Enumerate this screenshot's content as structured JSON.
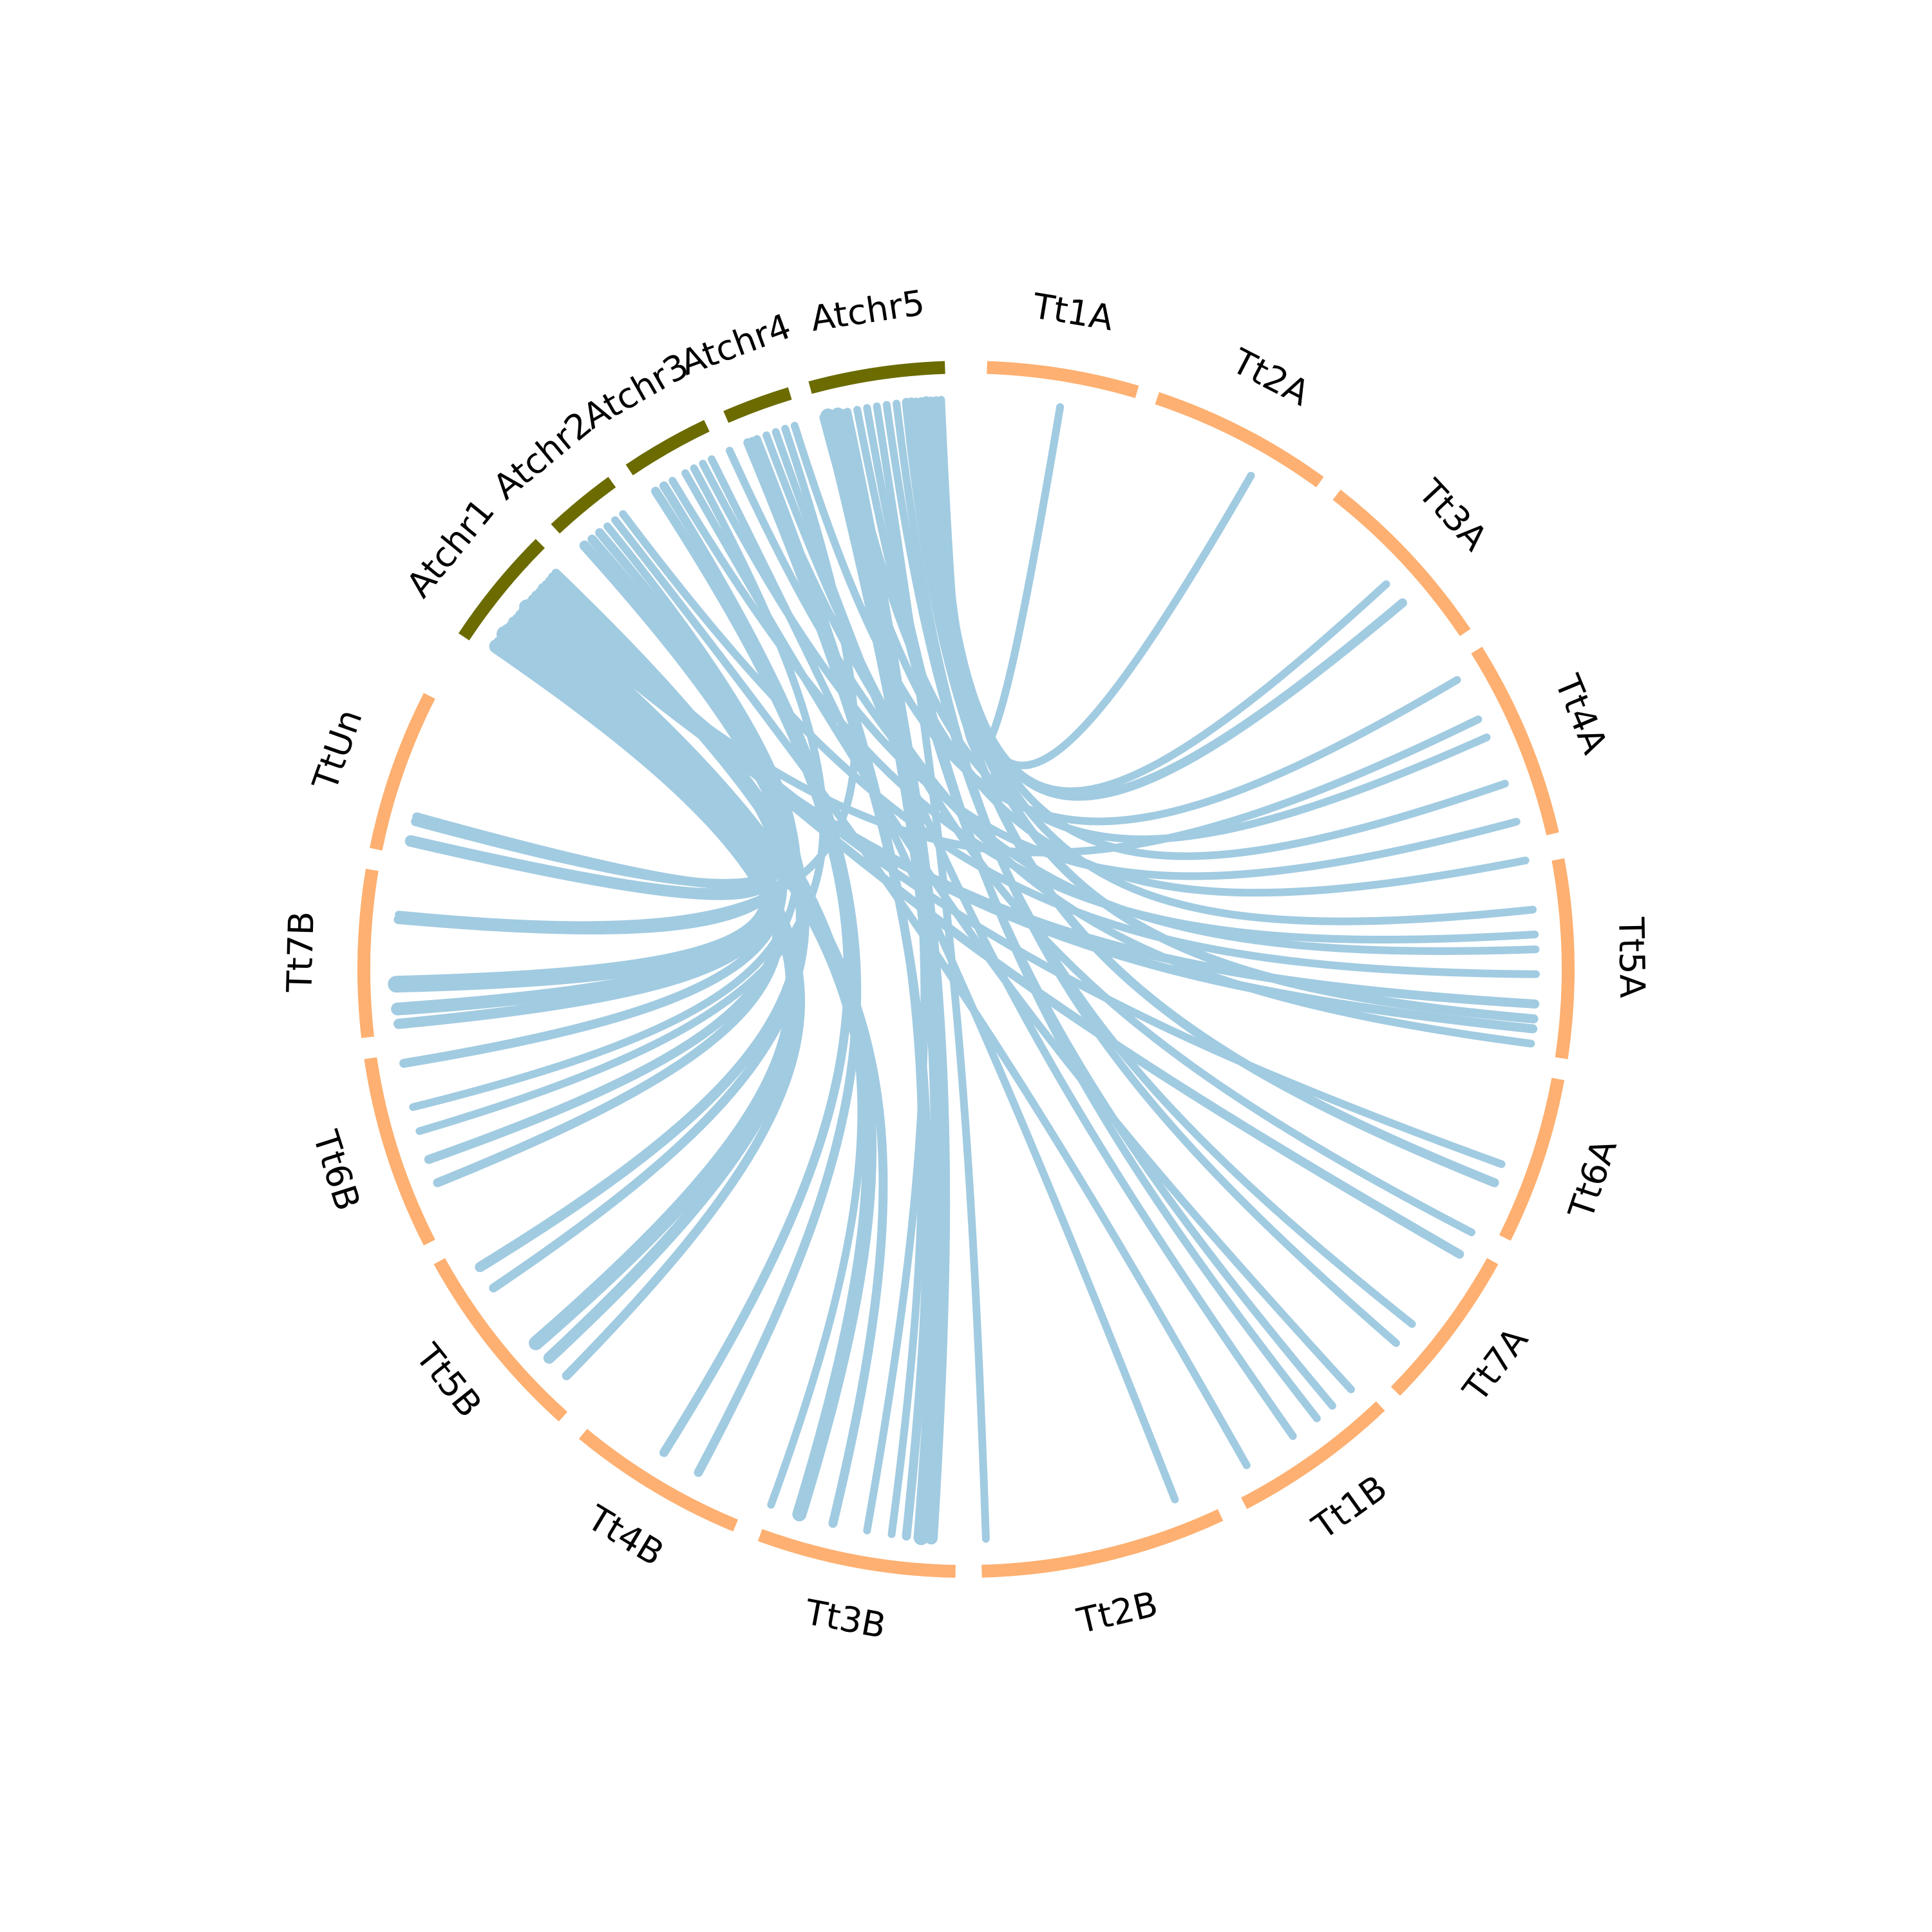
{
  "colors": {
    "background": "#ffffff",
    "arabidopsis_chromosome": "#6b6b00",
    "wheat_chromosome": "#fdb071",
    "link": "#a1cbe1",
    "label": "#000000"
  },
  "chromosomes": [
    {
      "id": "Atchr1",
      "label": "Atchr1",
      "group": "arabidopsis",
      "start_deg": 303.5,
      "end_deg": 315.0
    },
    {
      "id": "Atchr2",
      "label": "Atchr2",
      "group": "arabidopsis",
      "start_deg": 317.0,
      "end_deg": 324.0
    },
    {
      "id": "Atchr3",
      "label": "Atchr3",
      "group": "arabidopsis",
      "start_deg": 326.0,
      "end_deg": 334.5
    },
    {
      "id": "Atchr4",
      "label": "Atchr4",
      "group": "arabidopsis",
      "start_deg": 336.5,
      "end_deg": 343.0
    },
    {
      "id": "Atchr5",
      "label": "Atchr5",
      "group": "arabidopsis",
      "start_deg": 345.0,
      "end_deg": 358.0
    },
    {
      "id": "Tt1A",
      "label": "Tt1A",
      "group": "wheat",
      "start_deg": 2.0,
      "end_deg": 16.5
    },
    {
      "id": "Tt2A",
      "label": "Tt2A",
      "group": "wheat",
      "start_deg": 18.5,
      "end_deg": 36.0
    },
    {
      "id": "Tt3A",
      "label": "Tt3A",
      "group": "wheat",
      "start_deg": 38.0,
      "end_deg": 56.0
    },
    {
      "id": "Tt4A",
      "label": "Tt4A",
      "group": "wheat",
      "start_deg": 58.0,
      "end_deg": 77.0
    },
    {
      "id": "Tt5A",
      "label": "Tt5A",
      "group": "wheat",
      "start_deg": 79.5,
      "end_deg": 98.5
    },
    {
      "id": "Tt6A",
      "label": "Tt6A",
      "group": "wheat",
      "start_deg": 100.5,
      "end_deg": 116.5
    },
    {
      "id": "Tt7A",
      "label": "Tt7A",
      "group": "wheat",
      "start_deg": 119.0,
      "end_deg": 134.5
    },
    {
      "id": "Tt1B",
      "label": "Tt1B",
      "group": "wheat",
      "start_deg": 136.5,
      "end_deg": 152.5
    },
    {
      "id": "Tt2B",
      "label": "Tt2B",
      "group": "wheat",
      "start_deg": 155.0,
      "end_deg": 178.5
    },
    {
      "id": "Tt3B",
      "label": "Tt3B",
      "group": "wheat",
      "start_deg": 181.0,
      "end_deg": 200.0
    },
    {
      "id": "Tt4B",
      "label": "Tt4B",
      "group": "wheat",
      "start_deg": 202.5,
      "end_deg": 219.5
    },
    {
      "id": "Tt5B",
      "label": "Tt5B",
      "group": "wheat",
      "start_deg": 222.0,
      "end_deg": 241.0
    },
    {
      "id": "Tt6B",
      "label": "Tt6B",
      "group": "wheat",
      "start_deg": 243.0,
      "end_deg": 261.5
    },
    {
      "id": "Tt7B",
      "label": "Tt7B",
      "group": "wheat",
      "start_deg": 263.5,
      "end_deg": 279.5
    },
    {
      "id": "TtUn",
      "label": "TtUn",
      "group": "wheat",
      "start_deg": 281.5,
      "end_deg": 297.0
    }
  ],
  "links": [
    {
      "from": 304.5,
      "to": 229.0,
      "width": 22
    },
    {
      "from": 305.0,
      "to": 227.0,
      "width": 18
    },
    {
      "from": 305.5,
      "to": 224.5,
      "width": 14
    },
    {
      "from": 306.0,
      "to": 268.5,
      "width": 26
    },
    {
      "from": 306.5,
      "to": 266.0,
      "width": 20
    },
    {
      "from": 307.0,
      "to": 264.5,
      "width": 16
    },
    {
      "from": 307.5,
      "to": 283.0,
      "width": 18
    },
    {
      "from": 308.0,
      "to": 285.5,
      "width": 14
    },
    {
      "from": 308.5,
      "to": 250.5,
      "width": 14
    },
    {
      "from": 309.0,
      "to": 248.0,
      "width": 14
    },
    {
      "from": 309.5,
      "to": 197.0,
      "width": 22
    },
    {
      "from": 310.0,
      "to": 193.5,
      "width": 14
    },
    {
      "from": 310.5,
      "to": 93.5,
      "width": 14
    },
    {
      "from": 311.0,
      "to": 96.0,
      "width": 14
    },
    {
      "from": 311.5,
      "to": 64.0,
      "width": 12
    },
    {
      "from": 312.0,
      "to": 120.0,
      "width": 14
    },
    {
      "from": 312.5,
      "to": 110.0,
      "width": 12
    },
    {
      "from": 313.0,
      "to": 200.0,
      "width": 12
    },
    {
      "from": 313.5,
      "to": 285.0,
      "width": 14
    },
    {
      "from": 314.0,
      "to": 260.5,
      "width": 14
    },
    {
      "from": 318.0,
      "to": 238.5,
      "width": 16
    },
    {
      "from": 319.0,
      "to": 236.0,
      "width": 14
    },
    {
      "from": 320.0,
      "to": 275.0,
      "width": 14
    },
    {
      "from": 321.0,
      "to": 256.0,
      "width": 12
    },
    {
      "from": 322.0,
      "to": 150.5,
      "width": 12
    },
    {
      "from": 323.0,
      "to": 90.5,
      "width": 12
    },
    {
      "from": 327.0,
      "to": 212.0,
      "width": 14
    },
    {
      "from": 328.0,
      "to": 208.0,
      "width": 14
    },
    {
      "from": 329.0,
      "to": 86.5,
      "width": 12
    },
    {
      "from": 330.5,
      "to": 137.5,
      "width": 12
    },
    {
      "from": 331.5,
      "to": 253.5,
      "width": 12
    },
    {
      "from": 332.5,
      "to": 75.0,
      "width": 12
    },
    {
      "from": 333.5,
      "to": 158.5,
      "width": 12
    },
    {
      "from": 337.5,
      "to": 186.0,
      "width": 14
    },
    {
      "from": 338.5,
      "to": 187.5,
      "width": 12
    },
    {
      "from": 339.5,
      "to": 117.5,
      "width": 12
    },
    {
      "from": 340.5,
      "to": 145.0,
      "width": 12
    },
    {
      "from": 341.5,
      "to": 275.5,
      "width": 12
    },
    {
      "from": 342.5,
      "to": 59.5,
      "width": 12
    },
    {
      "from": 346.0,
      "to": 184.5,
      "width": 24
    },
    {
      "from": 347.0,
      "to": 183.5,
      "width": 20
    },
    {
      "from": 348.0,
      "to": 190.0,
      "width": 12
    },
    {
      "from": 349.0,
      "to": 140.0,
      "width": 12
    },
    {
      "from": 350.0,
      "to": 142.0,
      "width": 12
    },
    {
      "from": 351.0,
      "to": 178.0,
      "width": 12
    },
    {
      "from": 352.0,
      "to": 128.5,
      "width": 12
    },
    {
      "from": 353.0,
      "to": 131.0,
      "width": 12
    },
    {
      "from": 354.0,
      "to": 112.0,
      "width": 14
    },
    {
      "from": 354.5,
      "to": 95.0,
      "width": 14
    },
    {
      "from": 355.0,
      "to": 84.0,
      "width": 12
    },
    {
      "from": 355.5,
      "to": 71.0,
      "width": 12
    },
    {
      "from": 356.0,
      "to": 50.0,
      "width": 14
    },
    {
      "from": 356.5,
      "to": 47.5,
      "width": 12
    },
    {
      "from": 357.0,
      "to": 30.0,
      "width": 12
    },
    {
      "from": 357.5,
      "to": 9.5,
      "width": 12
    },
    {
      "from": 347.5,
      "to": 66.0,
      "width": 12
    },
    {
      "from": 345.5,
      "to": 79.0,
      "width": 12
    },
    {
      "from": 338.0,
      "to": 97.5,
      "width": 12
    },
    {
      "from": 335.5,
      "to": 88.0,
      "width": 12
    }
  ]
}
